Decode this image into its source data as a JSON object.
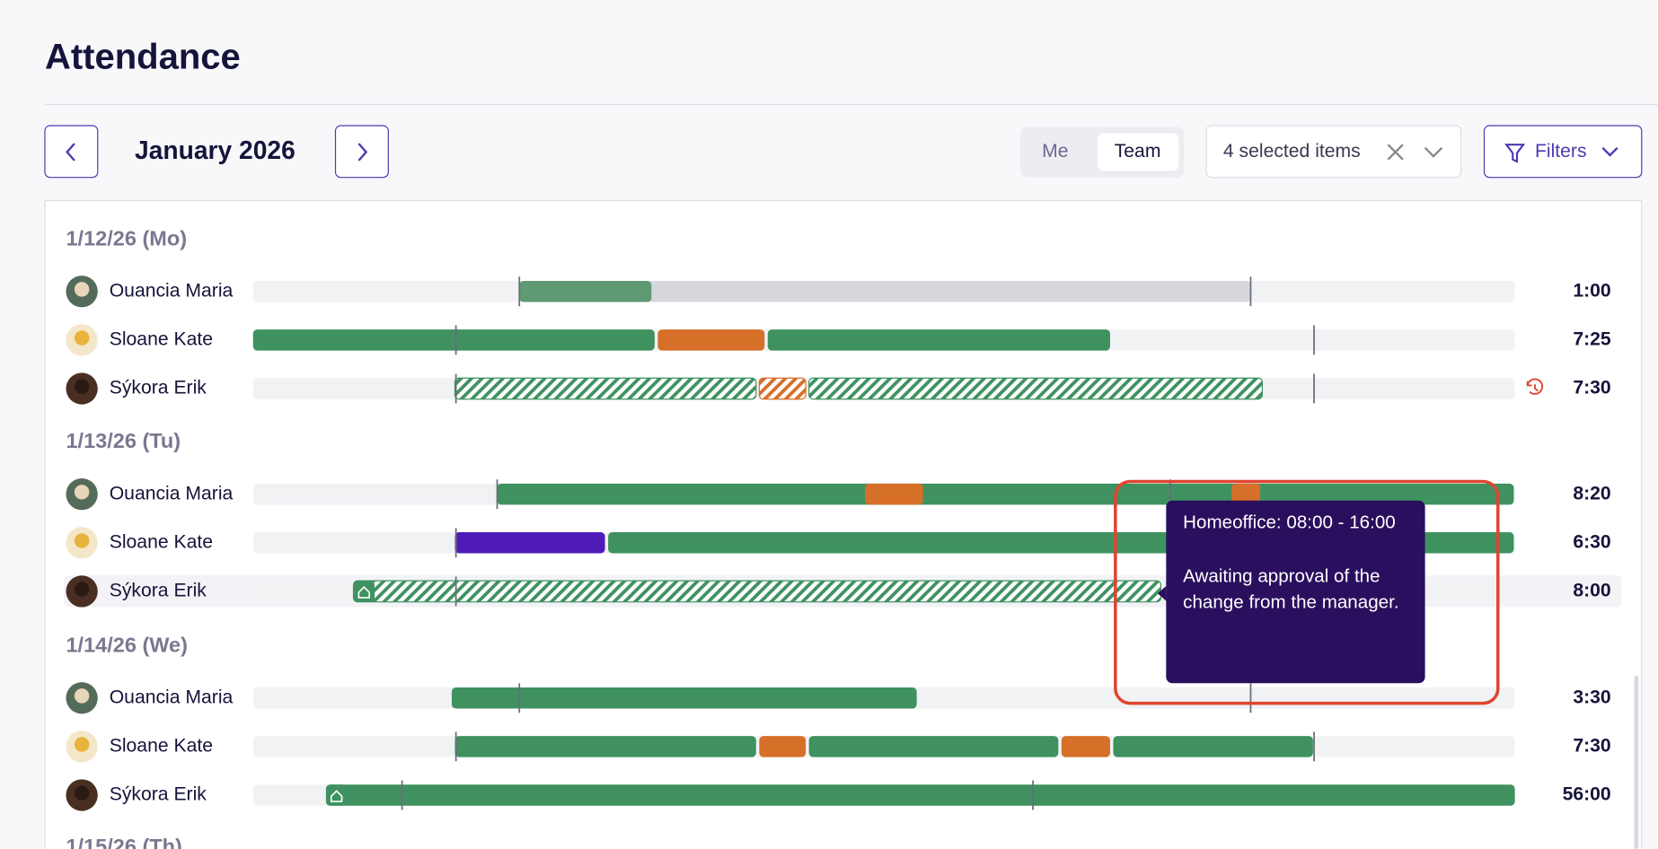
{
  "header": {
    "title": "Attendance",
    "month": "January 2026",
    "view_toggle": [
      "Me",
      "Team"
    ],
    "selection": "4 selected items",
    "filters": "Filters"
  },
  "days": [
    {
      "label": "1/12/26 (Mo)",
      "rows": [
        {
          "name": "Ouancia Maria",
          "total": "1:00"
        },
        {
          "name": "Sloane Kate",
          "total": "7:25"
        },
        {
          "name": "Sýkora Erik",
          "total": "7:30"
        }
      ]
    },
    {
      "label": "1/13/26 (Tu)",
      "rows": [
        {
          "name": "Ouancia Maria",
          "total": "8:20"
        },
        {
          "name": "Sloane Kate",
          "total": "6:30"
        },
        {
          "name": "Sýkora Erik",
          "total": "8:00"
        }
      ]
    },
    {
      "label": "1/14/26 (We)",
      "rows": [
        {
          "name": "Ouancia Maria",
          "total": "3:30"
        },
        {
          "name": "Sloane Kate",
          "total": "7:30"
        },
        {
          "name": "Sýkora Erik",
          "total": "56:00"
        }
      ]
    },
    {
      "label": "1/15/26 (Th)",
      "rows": []
    }
  ],
  "tooltip": {
    "title": "Homeoffice: 08:00 - 16:00",
    "message": "Awaiting approval of the change from the manager."
  }
}
